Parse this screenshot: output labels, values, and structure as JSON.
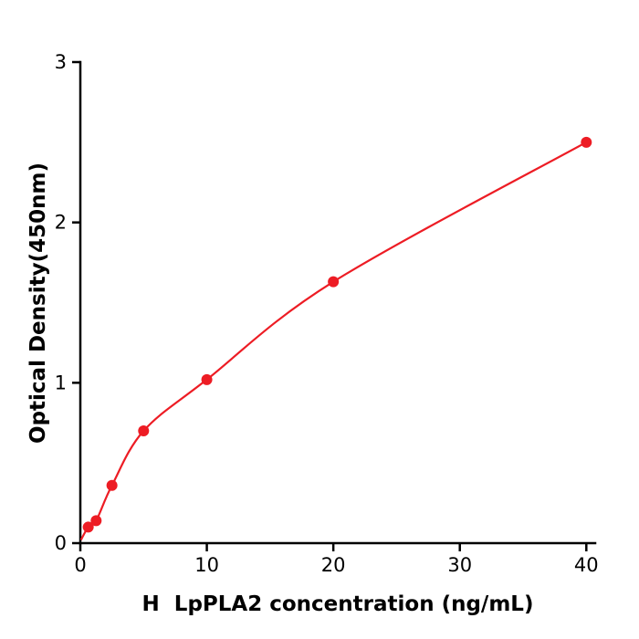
{
  "chart_data": {
    "type": "scatter",
    "title": "",
    "xlabel": "H  LpPLA2 concentration (ng/mL)",
    "ylabel": "Optical Density(450nm)",
    "x": [
      0.625,
      1.25,
      2.5,
      5,
      10,
      20,
      40
    ],
    "y": [
      0.1,
      0.14,
      0.36,
      0.7,
      1.02,
      1.63,
      2.5
    ],
    "curve": "smooth fit through points",
    "curve_anchor": {
      "x": 0.05,
      "y": 0.02
    },
    "xlim": [
      0,
      40.7
    ],
    "ylim": [
      0,
      3
    ],
    "x_ticks": [
      0,
      10,
      20,
      30,
      40
    ],
    "y_ticks": [
      0,
      1,
      2,
      3
    ],
    "grid": false,
    "point_color": "#ed1c24",
    "line_color": "#ed1c24",
    "axis_color": "#000000",
    "marker": "circle",
    "marker_size": 6
  }
}
